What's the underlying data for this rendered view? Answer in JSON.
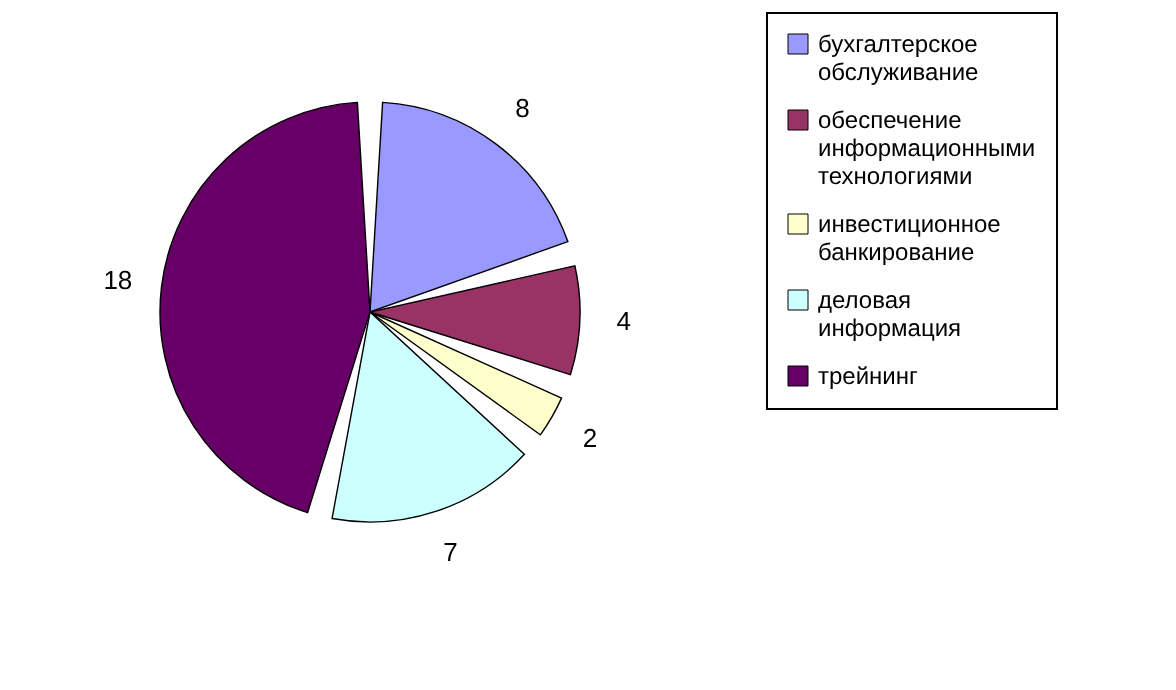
{
  "chart_data": {
    "type": "pie",
    "categories": [
      "бухгалтерское обслуживание",
      "обеспечение информационными технологиями",
      "инвестиционное банкирование",
      "деловая информация",
      "трейнинг"
    ],
    "values": [
      8,
      4,
      2,
      7,
      18
    ],
    "colors": [
      "#9999ff",
      "#993366",
      "#ffffcc",
      "#ccffff",
      "#660066"
    ],
    "data_labels": true,
    "legend": "right"
  }
}
